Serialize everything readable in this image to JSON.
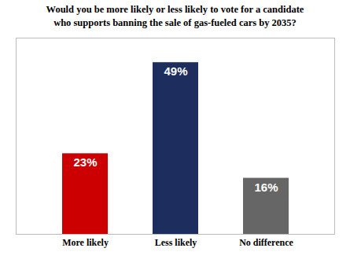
{
  "chart_data": {
    "type": "bar",
    "title": "Would you be more likely or less likely to vote for a candidate",
    "subtitle": "who supports banning the sale of gas-fueled cars by 2035?",
    "categories": [
      "More likely",
      "Less likely",
      "No difference"
    ],
    "values": [
      23,
      49,
      16
    ],
    "value_labels": [
      "23%",
      "49%",
      "16%"
    ],
    "colors": [
      "#cc0000",
      "#1c2d5e",
      "#666666"
    ],
    "ylim": [
      0,
      56
    ],
    "data_labels": true,
    "tick_labels": "x",
    "grid": false
  }
}
